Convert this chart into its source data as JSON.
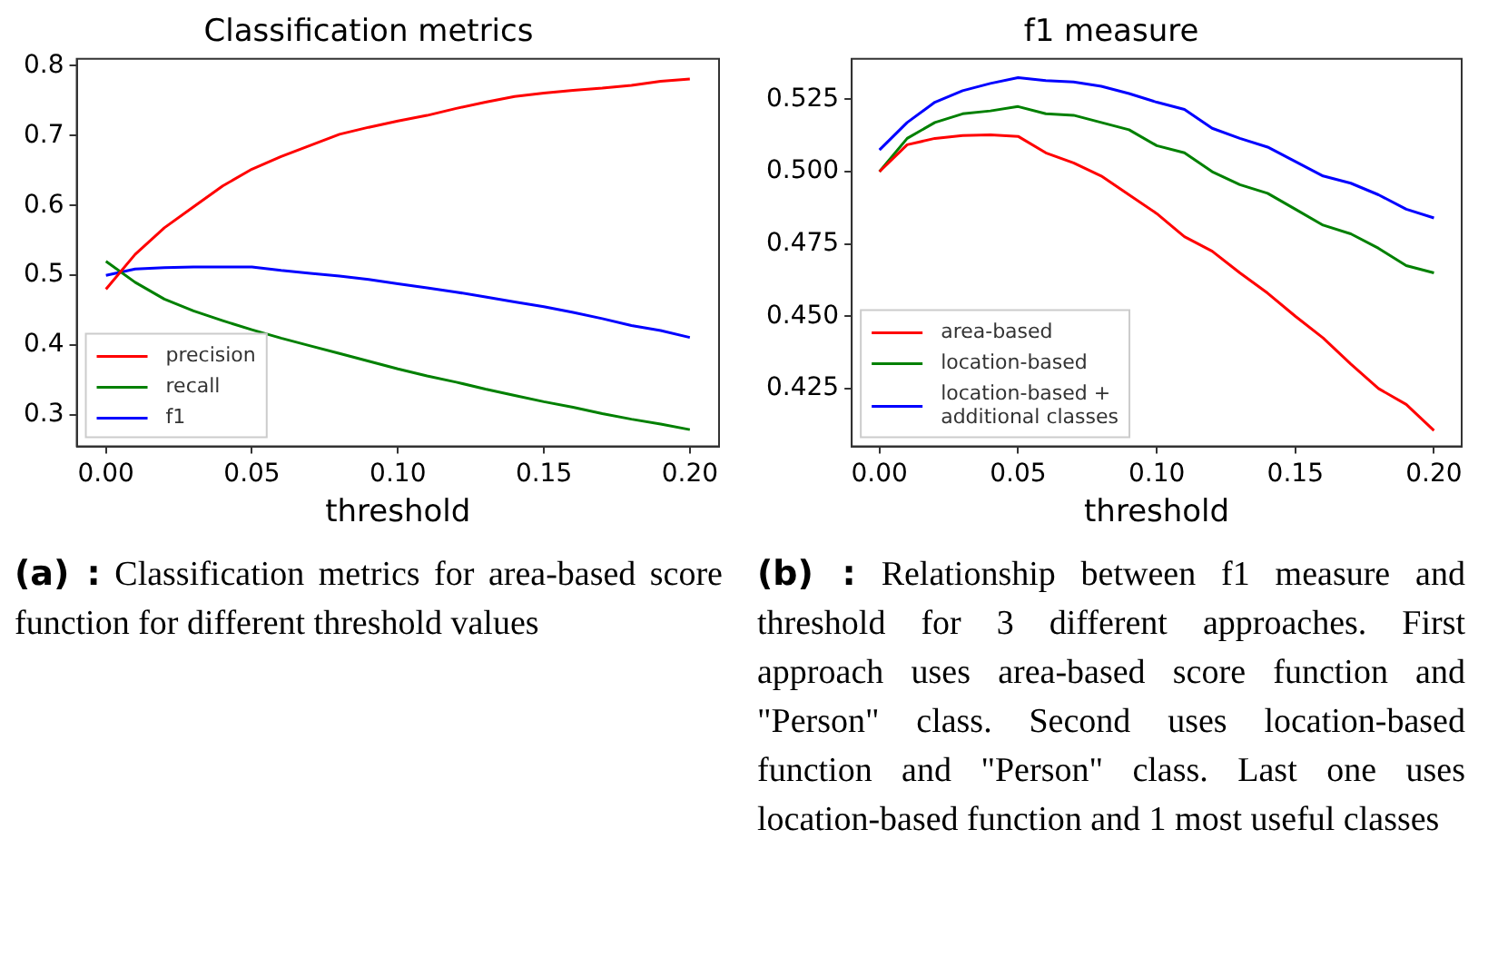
{
  "chart_data": [
    {
      "type": "line",
      "title": "Classification metrics",
      "xlabel": "threshold",
      "x": [
        0,
        0.01,
        0.02,
        0.03,
        0.04,
        0.05,
        0.06,
        0.07,
        0.08,
        0.09,
        0.1,
        0.11,
        0.12,
        0.13,
        0.14,
        0.15,
        0.16,
        0.17,
        0.18,
        0.19,
        0.2
      ],
      "series": [
        {
          "name": "precision",
          "color": "#ff0000",
          "values": [
            0.48,
            0.53,
            0.568,
            0.598,
            0.628,
            0.652,
            0.67,
            0.686,
            0.702,
            0.712,
            0.721,
            0.729,
            0.739,
            0.748,
            0.756,
            0.761,
            0.765,
            0.768,
            0.772,
            0.778,
            0.781
          ]
        },
        {
          "name": "recall",
          "color": "#008000",
          "values": [
            0.52,
            0.49,
            0.466,
            0.449,
            0.435,
            0.422,
            0.41,
            0.399,
            0.388,
            0.377,
            0.366,
            0.356,
            0.347,
            0.337,
            0.328,
            0.319,
            0.311,
            0.302,
            0.294,
            0.287,
            0.279
          ]
        },
        {
          "name": "f1",
          "color": "#0000ff",
          "values": [
            0.5,
            0.509,
            0.511,
            0.512,
            0.512,
            0.512,
            0.507,
            0.503,
            0.499,
            0.494,
            0.488,
            0.482,
            0.476,
            0.469,
            0.462,
            0.455,
            0.447,
            0.438,
            0.428,
            0.421,
            0.411
          ]
        }
      ],
      "xlim": [
        -0.01,
        0.21
      ],
      "xticks": [
        {
          "value": 0,
          "label": "0.00"
        },
        {
          "value": 0.05,
          "label": "0.05"
        },
        {
          "value": 0.1,
          "label": "0.10"
        },
        {
          "value": 0.15,
          "label": "0.15"
        },
        {
          "value": 0.2,
          "label": "0.20"
        }
      ],
      "ylim": [
        0.255,
        0.81
      ],
      "yticks": [
        0.3,
        0.4,
        0.5,
        0.6,
        0.7,
        0.8
      ],
      "grid": false,
      "legend": "bottom left",
      "marker": "none",
      "line_style": "solid",
      "annotations": [
        "(a) :",
        "Classification metrics for area-based score function for different threshold values"
      ]
    },
    {
      "type": "line",
      "title": "f1 measure",
      "xlabel": "threshold",
      "x": [
        0,
        0.01,
        0.02,
        0.03,
        0.04,
        0.05,
        0.06,
        0.07,
        0.08,
        0.09,
        0.1,
        0.11,
        0.12,
        0.13,
        0.14,
        0.15,
        0.16,
        0.17,
        0.18,
        0.19,
        0.2
      ],
      "series": [
        {
          "name": "area-based",
          "color": "#ff0000",
          "values": [
            0.5,
            0.5093,
            0.5115,
            0.5125,
            0.5127,
            0.5122,
            0.5065,
            0.503,
            0.4985,
            0.492,
            0.4855,
            0.4775,
            0.4725,
            0.465,
            0.458,
            0.45,
            0.4425,
            0.4335,
            0.425,
            0.4195,
            0.4105
          ]
        },
        {
          "name": "location-based",
          "color": "#008000",
          "values": [
            0.5,
            0.5115,
            0.517,
            0.52,
            0.521,
            0.5225,
            0.52,
            0.5195,
            0.517,
            0.5145,
            0.509,
            0.5065,
            0.5,
            0.4955,
            0.4925,
            0.487,
            0.4815,
            0.4785,
            0.4735,
            0.4675,
            0.465
          ]
        },
        {
          "name": "location-based + additional classes",
          "color": "#0000ff",
          "values": [
            0.5075,
            0.517,
            0.524,
            0.528,
            0.5305,
            0.5325,
            0.5315,
            0.531,
            0.5295,
            0.527,
            0.524,
            0.5215,
            0.515,
            0.5115,
            0.5085,
            0.5035,
            0.4985,
            0.496,
            0.492,
            0.487,
            0.484
          ]
        }
      ],
      "xlim": [
        -0.01,
        0.21
      ],
      "xticks": [
        {
          "value": 0,
          "label": "0.00"
        },
        {
          "value": 0.05,
          "label": "0.05"
        },
        {
          "value": 0.1,
          "label": "0.10"
        },
        {
          "value": 0.15,
          "label": "0.15"
        },
        {
          "value": 0.2,
          "label": "0.20"
        }
      ],
      "ylim": [
        0.405,
        0.539
      ],
      "yticks": [
        {
          "value": 0.425,
          "label": "0.425"
        },
        {
          "value": 0.45,
          "label": "0.450"
        },
        {
          "value": 0.475,
          "label": "0.475"
        },
        {
          "value": 0.5,
          "label": "0.500"
        },
        {
          "value": 0.525,
          "label": "0.525"
        }
      ],
      "grid": false,
      "legend": "bottom left",
      "marker": "none",
      "line_style": "solid",
      "annotations": [
        "(b) :",
        "Relationship between f1 measure and threshold for 3 different approaches. First approach uses area-based score function and \"Person\" class. Second uses location-based function and \"Person\" class. Last one uses location-based function and 1 most useful classes"
      ]
    }
  ]
}
